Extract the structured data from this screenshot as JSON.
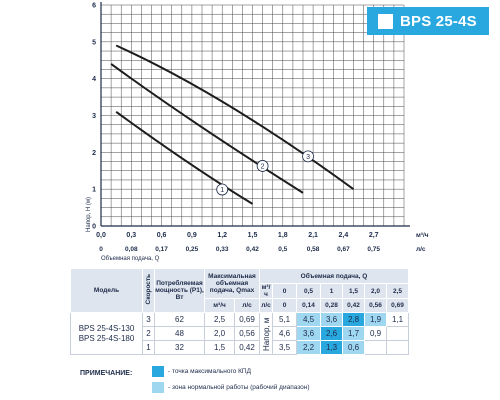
{
  "title": "BPS 25-4S",
  "colors": {
    "accent": "#29a8e0",
    "zone": "#9fd6f0",
    "curve": "#1d1d1b",
    "grid": "#4a4a4a"
  },
  "chart_data": {
    "type": "line",
    "xlabel": "Объемная подача, Q",
    "ylabel": "Напор, H (м)",
    "x_unit": "м³/ч",
    "x2_unit": "л/с",
    "xlim": [
      0,
      3.0
    ],
    "ylim": [
      0,
      6
    ],
    "x_ticks": [
      "0,0",
      "0,3",
      "0,6",
      "0,9",
      "1,2",
      "1,5",
      "1,8",
      "2,1",
      "2,4",
      "2,7"
    ],
    "x2_ticks": [
      "0",
      "0,08",
      "0,17",
      "0,25",
      "0,33",
      "0,42",
      "0,5",
      "0,58",
      "0,67",
      "0,75"
    ],
    "y_ticks": [
      "0",
      "1",
      "2",
      "3",
      "4",
      "5",
      "6"
    ],
    "grid": true,
    "series": [
      {
        "name": "1",
        "points": [
          [
            0.15,
            3.1
          ],
          [
            0.9,
            1.6
          ],
          [
            1.5,
            0.6
          ]
        ],
        "label_at": [
          1.2,
          0.99
        ]
      },
      {
        "name": "2",
        "points": [
          [
            0.1,
            4.4
          ],
          [
            0.9,
            2.8
          ],
          [
            2.0,
            0.9
          ]
        ],
        "label_at": [
          1.6,
          1.63
        ]
      },
      {
        "name": "3",
        "points": [
          [
            0.15,
            4.9
          ],
          [
            1.2,
            3.6
          ],
          [
            2.5,
            1.0
          ]
        ],
        "label_at": [
          2.05,
          1.89
        ]
      }
    ]
  },
  "table": {
    "h_model": "Модель",
    "h_speed": "Скорость",
    "h_power": "Потребляемая мощность (P1), Вт",
    "h_qmax": "Максимальная объемная подача, Qmax",
    "u_m3h": "м³/ч",
    "u_ls": "л/с",
    "h_q": "Объемная подача, Q",
    "q_m3h": [
      "0",
      "0,5",
      "1",
      "1,5",
      "2,0",
      "2,5"
    ],
    "q_ls": [
      "0",
      "0,14",
      "0,28",
      "0,42",
      "0,56",
      "0,69"
    ],
    "models": [
      "BPS 25-4S-130",
      "BPS 25-4S-180"
    ],
    "head_label": "Напор, м",
    "rows": [
      {
        "speed": "3",
        "power": "62",
        "qmax_m3h": "2,5",
        "qmax_ls": "0,69",
        "h": [
          "5,1",
          "4,5",
          "3,6",
          "2,8",
          "1,9",
          "1,1"
        ]
      },
      {
        "speed": "2",
        "power": "48",
        "qmax_m3h": "2,0",
        "qmax_ls": "0,56",
        "h": [
          "4,6",
          "3,6",
          "2,6",
          "1,7",
          "0,9",
          ""
        ]
      },
      {
        "speed": "1",
        "power": "32",
        "qmax_m3h": "1,5",
        "qmax_ls": "0,42",
        "h": [
          "3,5",
          "2,2",
          "1,3",
          "0,6",
          "",
          ""
        ]
      }
    ]
  },
  "note": {
    "title": "ПРИМЕЧАНИЕ:",
    "best": "- точка максимального КПД",
    "zone": "- зона нормальной работы (рабочий диапазон)"
  }
}
